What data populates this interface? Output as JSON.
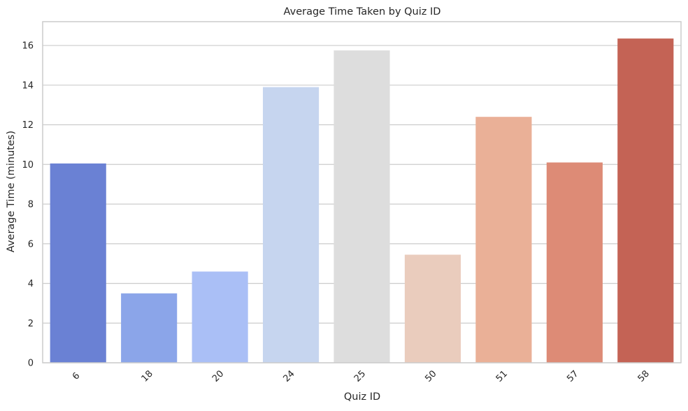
{
  "chart_data": {
    "type": "bar",
    "title": "Average Time Taken by Quiz ID",
    "xlabel": "Quiz ID",
    "ylabel": "Average Time (minutes)",
    "categories": [
      "6",
      "18",
      "20",
      "24",
      "25",
      "50",
      "51",
      "57",
      "58"
    ],
    "values": [
      10.05,
      3.5,
      4.6,
      13.9,
      15.75,
      5.45,
      12.4,
      10.1,
      16.35
    ],
    "ylim": [
      0,
      17.2
    ],
    "yticks": [
      0,
      2,
      4,
      6,
      8,
      10,
      12,
      14,
      16
    ],
    "grid": "horizontal",
    "x_tick_rotation": 45,
    "colors": [
      "#6a81d4",
      "#8ba5e9",
      "#aabff6",
      "#c6d5ef",
      "#dddddd",
      "#eaccbd",
      "#eab097",
      "#dd8b76",
      "#c46355"
    ]
  }
}
